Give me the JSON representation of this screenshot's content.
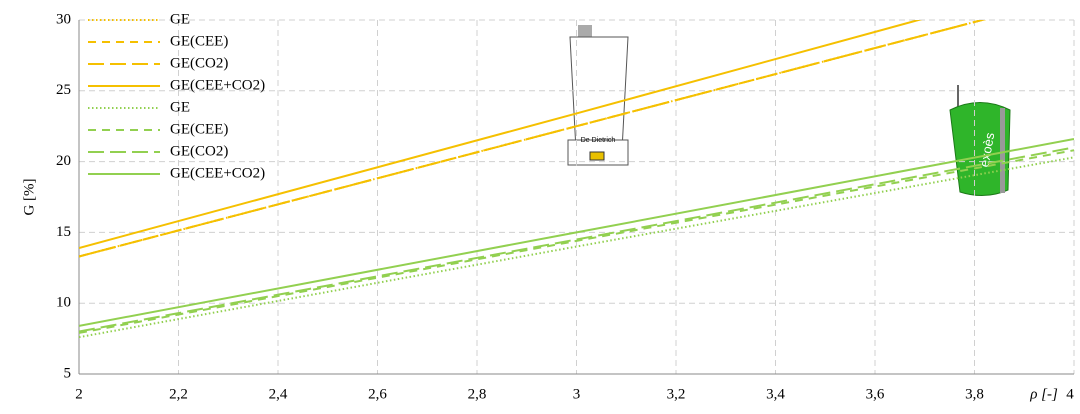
{
  "chart_data": {
    "type": "line",
    "x": [
      2,
      3,
      4
    ],
    "series": [
      {
        "name": "GE",
        "color": "#f5c000",
        "style": "dotted",
        "values": [
          13.3,
          22.5,
          31.7
        ]
      },
      {
        "name": "GE(CEE)",
        "color": "#f5c000",
        "style": "dashed",
        "values": [
          13.3,
          22.5,
          31.7
        ]
      },
      {
        "name": "GE(CO2)",
        "color": "#f5c000",
        "style": "longdash",
        "values": [
          13.3,
          22.5,
          31.7
        ]
      },
      {
        "name": "GE(CEE+CO2)",
        "color": "#f5c000",
        "style": "solid",
        "values": [
          13.9,
          23.4,
          33.0
        ]
      },
      {
        "name": "GE",
        "color": "#92d050",
        "style": "dotted",
        "values": [
          7.6,
          14.0,
          20.3
        ]
      },
      {
        "name": "GE(CEE)",
        "color": "#92d050",
        "style": "dashed",
        "values": [
          7.9,
          14.4,
          20.8
        ]
      },
      {
        "name": "GE(CO2)",
        "color": "#92d050",
        "style": "longdash",
        "values": [
          8.0,
          14.5,
          21.0
        ]
      },
      {
        "name": "GE(CEE+CO2)",
        "color": "#92d050",
        "style": "solid",
        "values": [
          8.4,
          15.0,
          21.6
        ]
      }
    ],
    "xlabel": "ρ [-]",
    "ylabel": "G [%]",
    "xlim": [
      2,
      4
    ],
    "ylim": [
      5,
      30
    ],
    "xticks": [
      2,
      {
        "value": 2.2,
        "label": "2,2"
      },
      {
        "value": 2.4,
        "label": "2,4"
      },
      {
        "value": 2.6,
        "label": "2,6"
      },
      {
        "value": 2.8,
        "label": "2,8"
      },
      3,
      {
        "value": 3.2,
        "label": "3,2"
      },
      {
        "value": 3.4,
        "label": "3,4"
      },
      {
        "value": 3.6,
        "label": "3,6"
      },
      {
        "value": 3.8,
        "label": "3,8"
      },
      4
    ],
    "yticks": [
      5,
      10,
      15,
      20,
      25,
      30
    ],
    "grid": true,
    "legend": "top-left"
  }
}
